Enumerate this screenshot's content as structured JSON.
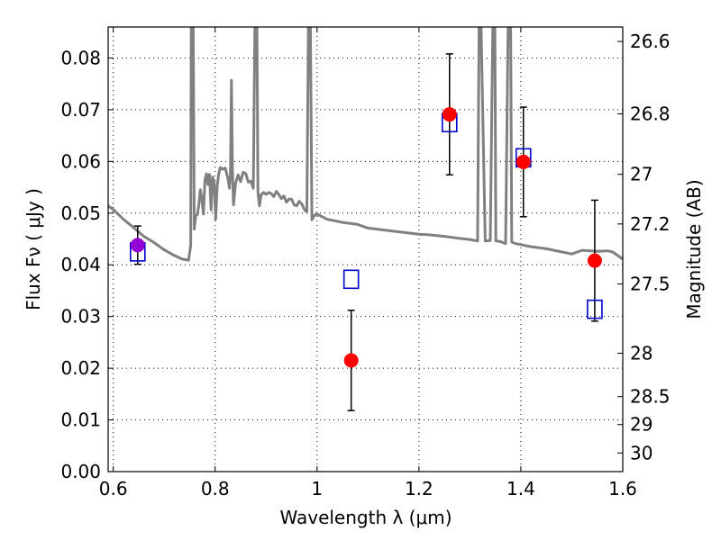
{
  "chart_data": {
    "type": "scatter",
    "xlabel": "Wavelength  λ (μm)",
    "ylabel": "Flux  Fν  ( μJy )",
    "y2label": "Magnitude (AB)",
    "xlim": [
      0.59,
      1.6
    ],
    "ylim": [
      0.0,
      0.086
    ],
    "x_ticks": [
      0.6,
      0.8,
      1.0,
      1.2,
      1.4,
      1.6
    ],
    "x_tick_labels": [
      "0.6",
      "0.8",
      "1",
      "1.2",
      "1.4",
      "1.6"
    ],
    "y_ticks": [
      0.0,
      0.01,
      0.02,
      0.03,
      0.04,
      0.05,
      0.06,
      0.07,
      0.08
    ],
    "y_tick_labels": [
      "0.00",
      "0.01",
      "0.02",
      "0.03",
      "0.04",
      "0.05",
      "0.06",
      "0.07",
      "0.08"
    ],
    "y2_ticks": [
      {
        "label": "26.6",
        "flux": 0.0832
      },
      {
        "label": "26.8",
        "flux": 0.0692
      },
      {
        "label": "27",
        "flux": 0.0575
      },
      {
        "label": "27.2",
        "flux": 0.0479
      },
      {
        "label": "27.5",
        "flux": 0.0363
      },
      {
        "label": "28",
        "flux": 0.0229
      },
      {
        "label": "28.5",
        "flux": 0.0145
      },
      {
        "label": "29",
        "flux": 0.0091
      },
      {
        "label": "30",
        "flux": 0.0036
      }
    ],
    "grid": true,
    "model_spectrum": {
      "color": "#808080",
      "x": [
        0.59,
        0.6,
        0.62,
        0.64,
        0.66,
        0.68,
        0.7,
        0.72,
        0.735,
        0.748,
        0.752,
        0.753,
        0.755,
        0.757,
        0.759,
        0.762,
        0.765,
        0.768,
        0.771,
        0.774,
        0.777,
        0.78,
        0.783,
        0.786,
        0.789,
        0.792,
        0.795,
        0.798,
        0.801,
        0.804,
        0.807,
        0.81,
        0.815,
        0.82,
        0.825,
        0.828,
        0.83,
        0.832,
        0.834,
        0.836,
        0.84,
        0.845,
        0.85,
        0.855,
        0.86,
        0.865,
        0.87,
        0.875,
        0.878,
        0.88,
        0.882,
        0.884,
        0.887,
        0.89,
        0.895,
        0.9,
        0.905,
        0.91,
        0.915,
        0.92,
        0.925,
        0.93,
        0.935,
        0.94,
        0.945,
        0.95,
        0.955,
        0.96,
        0.965,
        0.97,
        0.975,
        0.98,
        0.983,
        0.985,
        0.987,
        0.99,
        0.995,
        1.0,
        1.02,
        1.05,
        1.08,
        1.1,
        1.15,
        1.2,
        1.22,
        1.25,
        1.28,
        1.3,
        1.315,
        1.318,
        1.32,
        1.322,
        1.33,
        1.34,
        1.345,
        1.347,
        1.349,
        1.351,
        1.36,
        1.37,
        1.375,
        1.378,
        1.38,
        1.382,
        1.39,
        1.4,
        1.42,
        1.45,
        1.48,
        1.5,
        1.52,
        1.55,
        1.57,
        1.58,
        1.6
      ],
      "y": [
        0.0514,
        0.0507,
        0.0488,
        0.0472,
        0.0455,
        0.0443,
        0.0429,
        0.0418,
        0.0411,
        0.0409,
        0.0438,
        0.0862,
        0.0862,
        0.0862,
        0.0469,
        0.0495,
        0.0497,
        0.0515,
        0.0545,
        0.0528,
        0.0498,
        0.0564,
        0.0576,
        0.0555,
        0.0575,
        0.0506,
        0.057,
        0.0561,
        0.0488,
        0.0552,
        0.0576,
        0.0588,
        0.0585,
        0.0587,
        0.0567,
        0.0548,
        0.0574,
        0.0757,
        0.0586,
        0.0516,
        0.0557,
        0.0574,
        0.0561,
        0.0579,
        0.0577,
        0.056,
        0.0562,
        0.0548,
        0.0862,
        0.0862,
        0.0862,
        0.0541,
        0.0514,
        0.0535,
        0.054,
        0.0536,
        0.054,
        0.0538,
        0.0532,
        0.0542,
        0.0536,
        0.0528,
        0.0533,
        0.0521,
        0.0527,
        0.0527,
        0.0516,
        0.0514,
        0.0523,
        0.0518,
        0.0507,
        0.0502,
        0.0862,
        0.0862,
        0.0862,
        0.0487,
        0.0496,
        0.0498,
        0.0488,
        0.0482,
        0.0478,
        0.0471,
        0.0465,
        0.0459,
        0.0458,
        0.0455,
        0.0451,
        0.0449,
        0.0446,
        0.0862,
        0.0862,
        0.0862,
        0.0446,
        0.0447,
        0.0862,
        0.0862,
        0.0862,
        0.0446,
        0.0445,
        0.0441,
        0.0862,
        0.0862,
        0.0862,
        0.0444,
        0.0441,
        0.0439,
        0.0435,
        0.0431,
        0.0425,
        0.0421,
        0.0428,
        0.0426,
        0.0427,
        0.0425,
        0.0411
      ]
    },
    "observed": {
      "color": "#ff0000",
      "points": [
        {
          "x": 0.648,
          "y": 0.0438,
          "err": 0.0037,
          "color": "#9400d3"
        },
        {
          "x": 1.067,
          "y": 0.0215,
          "err": 0.0097
        },
        {
          "x": 1.26,
          "y": 0.0691,
          "err": 0.0117
        },
        {
          "x": 1.405,
          "y": 0.0599,
          "err": 0.0106
        },
        {
          "x": 1.545,
          "y": 0.0408,
          "err": 0.0117
        }
      ]
    },
    "model_photometry": {
      "color": "#0000cc",
      "points": [
        {
          "x": 0.648,
          "y": 0.0425
        },
        {
          "x": 1.067,
          "y": 0.0372
        },
        {
          "x": 1.26,
          "y": 0.0675
        },
        {
          "x": 1.405,
          "y": 0.0607
        },
        {
          "x": 1.545,
          "y": 0.0314
        }
      ]
    }
  }
}
